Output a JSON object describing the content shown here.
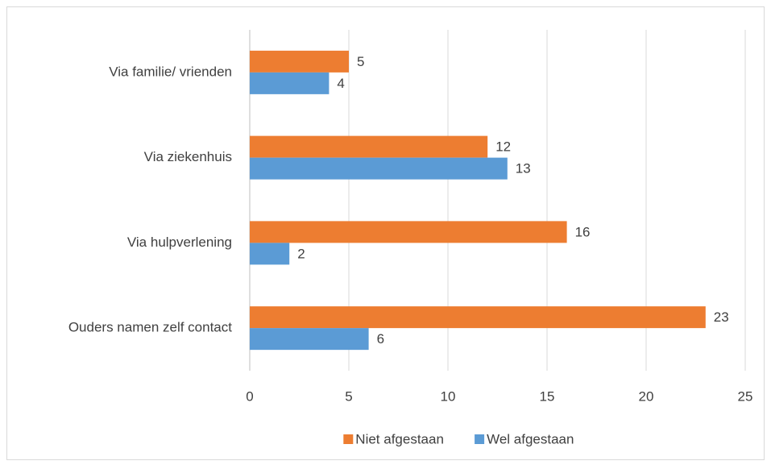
{
  "chart_data": {
    "type": "bar",
    "orientation": "horizontal",
    "categories": [
      "Via familie/ vrienden",
      "Via ziekenhuis",
      "Via hulpverlening",
      "Ouders namen zelf contact"
    ],
    "series": [
      {
        "name": "Niet afgestaan",
        "color": "#ed7d31",
        "values": [
          5,
          12,
          16,
          23
        ]
      },
      {
        "name": "Wel afgestaan",
        "color": "#5b9bd5",
        "values": [
          4,
          13,
          2,
          6
        ]
      }
    ],
    "xlim": [
      0,
      25
    ],
    "xticks": [
      0,
      5,
      10,
      15,
      20,
      25
    ],
    "grid": true,
    "legend": "bottom"
  }
}
